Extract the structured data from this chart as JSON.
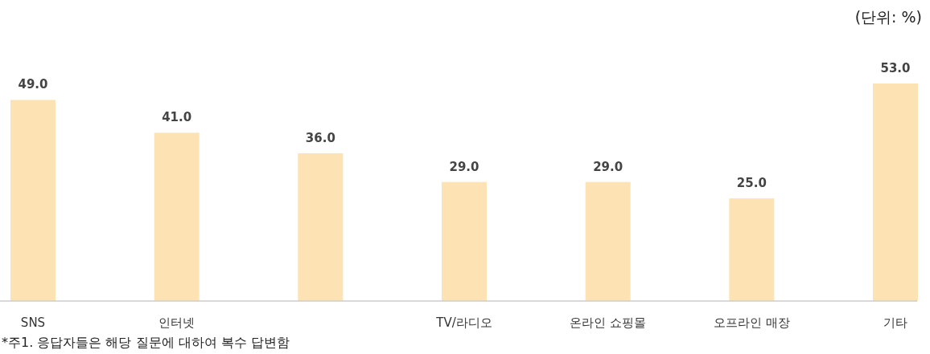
{
  "chart_data": {
    "type": "bar",
    "categories": [
      "SNS",
      "인터넷",
      null,
      "TV/라디오",
      "온라인 쇼핑몰",
      "오프라인 매장",
      "기타"
    ],
    "values": [
      49.0,
      41.0,
      36.0,
      29.0,
      29.0,
      25.0,
      53.0
    ],
    "value_labels": [
      "49.0",
      "41.0",
      "36.0",
      "29.0",
      "29.0",
      "25.0",
      "53.0"
    ],
    "color": "#fde3b4",
    "annotations": [
      "(단위: %)",
      "*주1. 응답자들은 해당 질문에 대하여 복수 답변함"
    ]
  }
}
